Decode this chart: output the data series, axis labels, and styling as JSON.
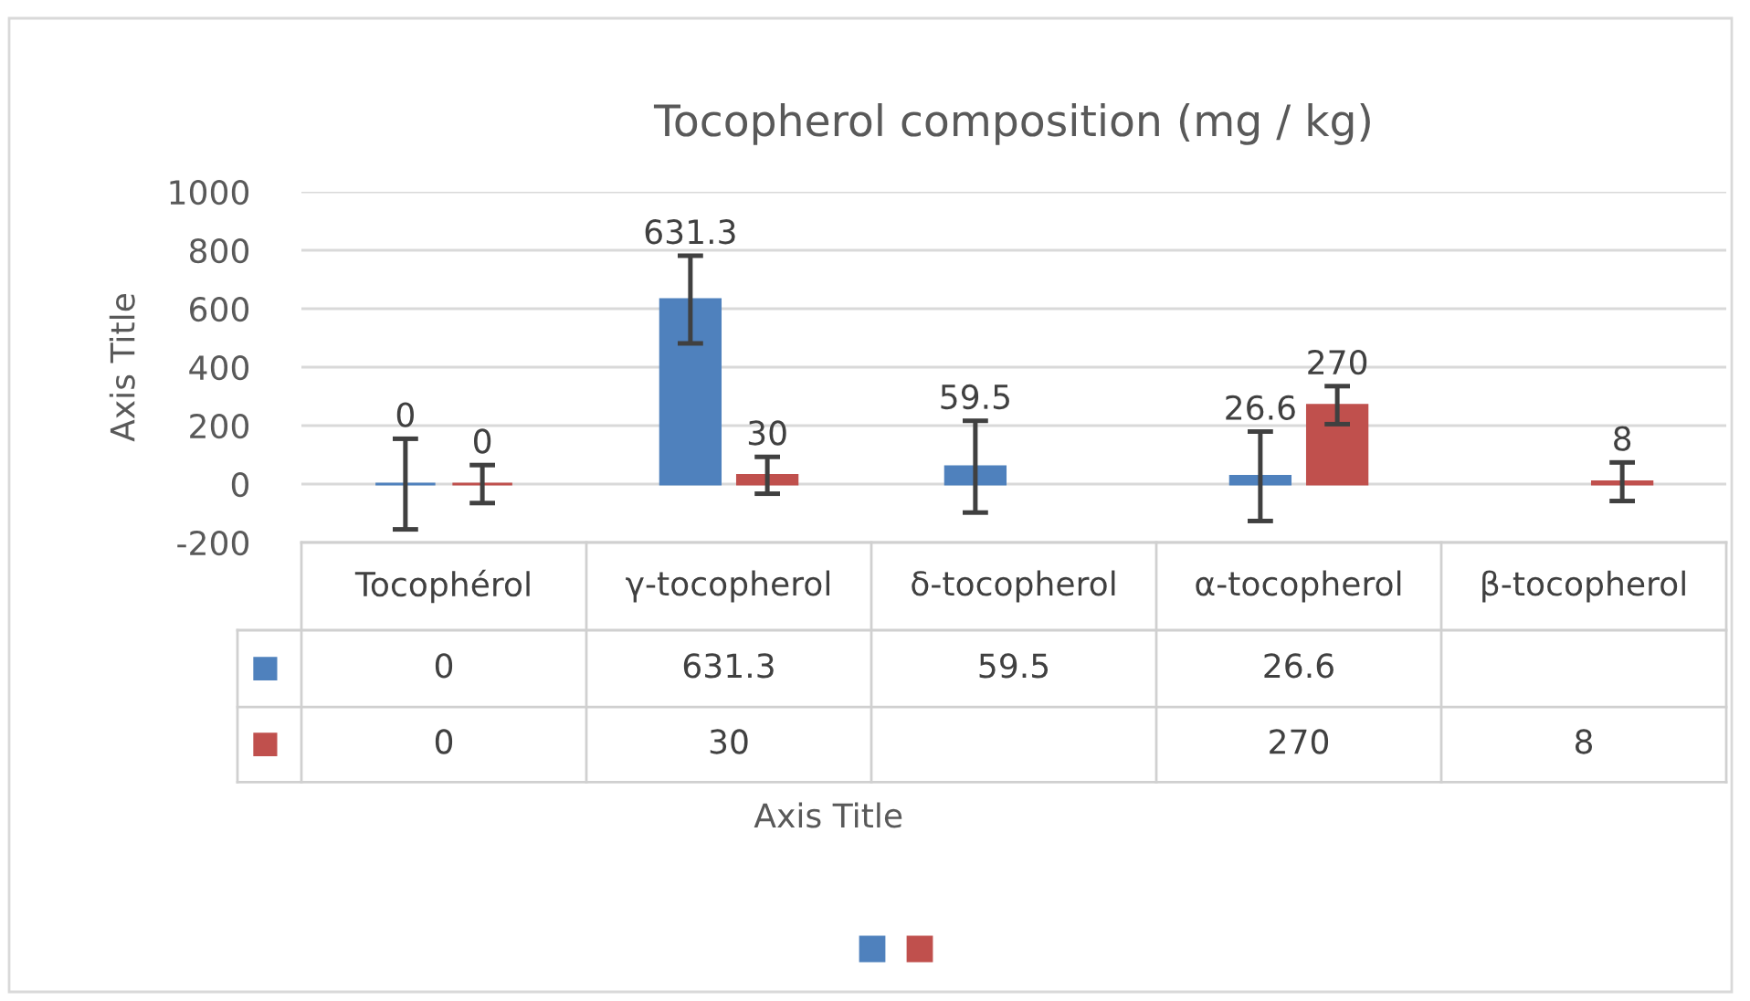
{
  "chart_data": {
    "type": "bar",
    "title": "Tocopherol composition (mg / kg)",
    "annotations": [
      "Axis Title"
    ],
    "ylabel": "Axis Title",
    "categories": [
      "Tocophérol",
      "γ-tocopherol",
      "δ-tocopherol",
      "α-tocopherol",
      "β-tocopherol"
    ],
    "series": [
      {
        "color": "#4f81bd",
        "values": [
          0,
          631.3,
          59.5,
          26.6,
          null
        ],
        "errors": [
          155,
          150,
          157,
          153,
          null
        ],
        "value_labels": [
          "0",
          "631.3",
          "59.5",
          "26.6",
          null
        ]
      },
      {
        "color": "#c0504d",
        "values": [
          0,
          30,
          null,
          270,
          8
        ],
        "errors": [
          65,
          63,
          null,
          65,
          66
        ],
        "value_labels": [
          "0",
          "30",
          null,
          "270",
          "8"
        ]
      }
    ],
    "ylim": [
      -200,
      1000
    ],
    "yticks": [
      -200,
      0,
      200,
      400,
      600,
      800,
      1000
    ],
    "grid": "y",
    "data_labels": true
  }
}
